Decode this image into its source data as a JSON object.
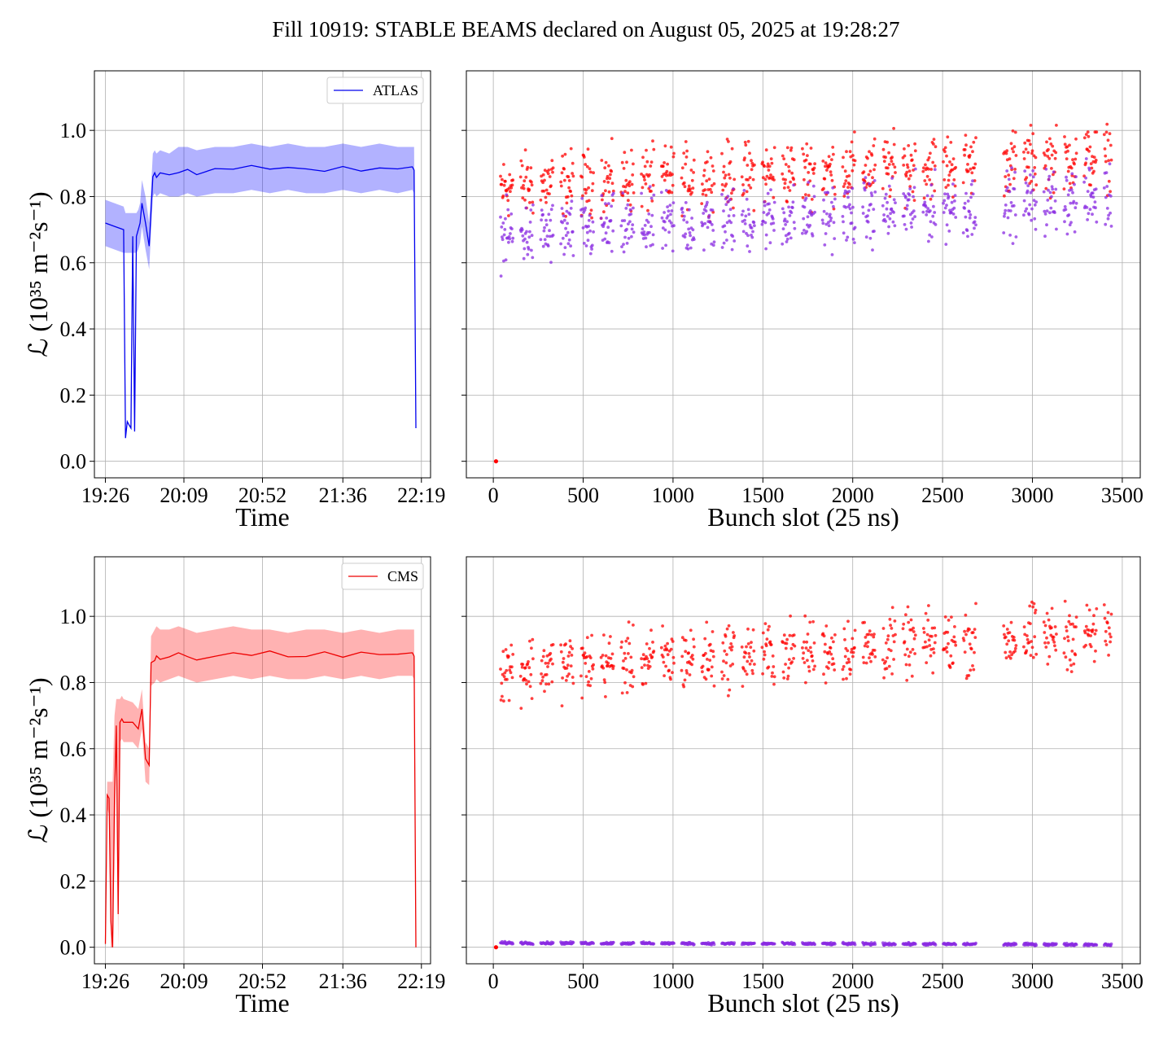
{
  "figure": {
    "title": "Fill 10919: STABLE BEAMS declared on August 05, 2025 at 19:28:27"
  },
  "chart_data": [
    {
      "id": "atlas-time",
      "type": "line",
      "xlabel": "Time",
      "ylabel": "ℒ (10³⁵ m⁻²s⁻¹)",
      "xticks": [
        "19:26",
        "20:09",
        "20:52",
        "21:36",
        "22:19"
      ],
      "xlim_minutes": [
        -6,
        178
      ],
      "ylim": [
        -0.05,
        1.18
      ],
      "yticks": [
        "0.0",
        "0.2",
        "0.4",
        "0.6",
        "0.8",
        "1.0"
      ],
      "grid": true,
      "legend": {
        "placement": "top-right",
        "entries": [
          "ATLAS"
        ]
      },
      "color": "#0000ee",
      "band_color": "#0000ff",
      "series": [
        {
          "name": "ATLAS",
          "x_minutes": [
            0,
            5,
            10,
            11,
            12,
            13,
            14,
            15,
            16,
            17,
            18,
            19,
            20,
            22,
            24,
            26,
            27,
            28,
            30,
            35,
            40,
            45,
            50,
            60,
            70,
            80,
            90,
            100,
            110,
            120,
            130,
            140,
            150,
            160,
            168,
            169,
            170
          ],
          "y": [
            0.72,
            0.71,
            0.7,
            0.07,
            0.12,
            0.11,
            0.1,
            0.68,
            0.09,
            0.68,
            0.7,
            0.72,
            0.78,
            0.72,
            0.65,
            0.86,
            0.87,
            0.86,
            0.87,
            0.86,
            0.87,
            0.88,
            0.87,
            0.88,
            0.88,
            0.89,
            0.88,
            0.89,
            0.88,
            0.88,
            0.89,
            0.88,
            0.89,
            0.88,
            0.89,
            0.88,
            0.1
          ],
          "upper": [
            0.79,
            0.78,
            0.77,
            0.75,
            0.75,
            0.75,
            0.75,
            0.75,
            0.75,
            0.75,
            0.76,
            0.78,
            0.85,
            0.8,
            0.72,
            0.93,
            0.94,
            0.93,
            0.94,
            0.93,
            0.95,
            0.95,
            0.94,
            0.95,
            0.95,
            0.96,
            0.95,
            0.96,
            0.95,
            0.95,
            0.96,
            0.95,
            0.96,
            0.95,
            0.95,
            0.95,
            0.1
          ],
          "lower": [
            0.65,
            0.64,
            0.63,
            0.63,
            0.63,
            0.63,
            0.63,
            0.63,
            0.63,
            0.63,
            0.64,
            0.66,
            0.71,
            0.64,
            0.58,
            0.8,
            0.81,
            0.8,
            0.81,
            0.8,
            0.8,
            0.81,
            0.8,
            0.81,
            0.81,
            0.82,
            0.81,
            0.82,
            0.81,
            0.81,
            0.82,
            0.81,
            0.82,
            0.81,
            0.82,
            0.81,
            0.1
          ]
        }
      ]
    },
    {
      "id": "atlas-bunch",
      "type": "scatter",
      "xlabel": "Bunch slot (25 ns)",
      "xlim": [
        -150,
        3600
      ],
      "ylim": [
        -0.05,
        1.18
      ],
      "xticks": [
        0,
        500,
        1000,
        1500,
        2000,
        2500,
        3000,
        3500
      ],
      "grid": true,
      "bunch_range": [
        40,
        3440
      ],
      "gap_ranges": [
        [
          2670,
          2740
        ]
      ],
      "series": [
        {
          "name": "",
          "color": "#ff0000",
          "base_start": 0.83,
          "base_end": 0.92,
          "spread": 0.08
        },
        {
          "name": "",
          "color": "#8a2be2",
          "base_start": 0.68,
          "base_end": 0.8,
          "spread": 0.08
        }
      ],
      "outlier_point": {
        "x": 15,
        "y": 0.0
      }
    },
    {
      "id": "cms-time",
      "type": "line",
      "xlabel": "Time",
      "ylabel": "ℒ (10³⁵ m⁻²s⁻¹)",
      "xticks": [
        "19:26",
        "20:09",
        "20:52",
        "21:36",
        "22:19"
      ],
      "xlim_minutes": [
        -6,
        178
      ],
      "ylim": [
        -0.05,
        1.18
      ],
      "yticks": [
        "0.0",
        "0.2",
        "0.4",
        "0.6",
        "0.8",
        "1.0"
      ],
      "grid": true,
      "legend": {
        "placement": "top-right",
        "entries": [
          "CMS"
        ]
      },
      "color": "#ee0000",
      "band_color": "#ff0000",
      "series": [
        {
          "name": "CMS",
          "x_minutes": [
            0,
            1,
            2,
            3,
            4,
            5,
            6,
            7,
            8,
            9,
            10,
            15,
            18,
            20,
            22,
            24,
            25,
            27,
            28,
            30,
            35,
            40,
            45,
            50,
            60,
            70,
            80,
            90,
            100,
            110,
            120,
            130,
            140,
            150,
            160,
            168,
            169,
            170
          ],
          "y": [
            0.01,
            0.46,
            0.45,
            0.08,
            0.0,
            0.45,
            0.67,
            0.1,
            0.68,
            0.69,
            0.68,
            0.68,
            0.66,
            0.72,
            0.57,
            0.55,
            0.86,
            0.87,
            0.88,
            0.87,
            0.88,
            0.89,
            0.88,
            0.87,
            0.88,
            0.89,
            0.88,
            0.89,
            0.88,
            0.88,
            0.89,
            0.88,
            0.89,
            0.88,
            0.89,
            0.89,
            0.88,
            0.0
          ],
          "upper": [
            0.01,
            0.5,
            0.5,
            0.5,
            0.5,
            0.7,
            0.75,
            0.75,
            0.75,
            0.76,
            0.75,
            0.74,
            0.72,
            0.78,
            0.62,
            0.6,
            0.94,
            0.96,
            0.97,
            0.96,
            0.96,
            0.97,
            0.96,
            0.95,
            0.96,
            0.97,
            0.96,
            0.96,
            0.95,
            0.96,
            0.96,
            0.95,
            0.96,
            0.95,
            0.96,
            0.96,
            0.96,
            0.0
          ],
          "lower": [
            0.01,
            0.42,
            0.4,
            0.0,
            0.0,
            0.3,
            0.6,
            0.0,
            0.62,
            0.63,
            0.62,
            0.62,
            0.6,
            0.66,
            0.5,
            0.49,
            0.79,
            0.8,
            0.81,
            0.8,
            0.81,
            0.82,
            0.81,
            0.8,
            0.81,
            0.82,
            0.81,
            0.82,
            0.81,
            0.81,
            0.82,
            0.81,
            0.82,
            0.81,
            0.82,
            0.82,
            0.81,
            0.0
          ]
        }
      ]
    },
    {
      "id": "cms-bunch",
      "type": "scatter",
      "xlabel": "Bunch slot (25 ns)",
      "xlim": [
        -150,
        3600
      ],
      "ylim": [
        -0.05,
        1.18
      ],
      "xticks": [
        0,
        500,
        1000,
        1500,
        2000,
        2500,
        3000,
        3500
      ],
      "grid": true,
      "bunch_range": [
        40,
        3440
      ],
      "gap_ranges": [
        [
          2670,
          2740
        ]
      ],
      "series": [
        {
          "name": "",
          "color": "#ff0000",
          "base_start": 0.84,
          "base_end": 0.95,
          "spread": 0.08
        },
        {
          "name": "",
          "color": "#8a2be2",
          "base_start": 0.013,
          "base_end": 0.008,
          "spread": 0.003
        }
      ],
      "outlier_point": {
        "x": 15,
        "y": 0.0
      }
    }
  ]
}
